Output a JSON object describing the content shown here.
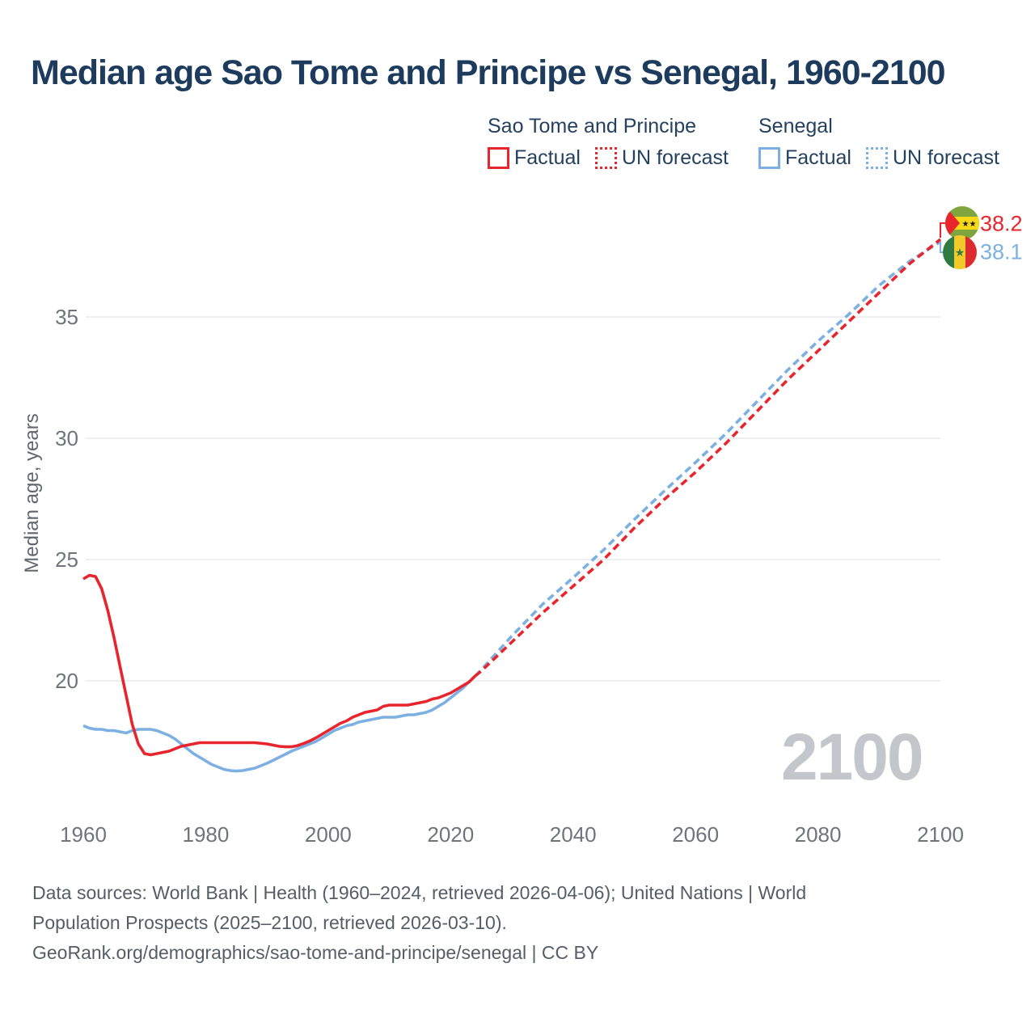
{
  "title": "Median age Sao Tome and Principe vs Senegal, 1960-2100",
  "watermark": "2100",
  "legend": {
    "groups": [
      {
        "name": "Sao Tome and Principe",
        "color": "#e8252c",
        "items": [
          {
            "label": "Factual",
            "style": "solid"
          },
          {
            "label": "UN forecast",
            "style": "dotted"
          }
        ]
      },
      {
        "name": "Senegal",
        "color": "#7cb0e2",
        "items": [
          {
            "label": "Factual",
            "style": "solid"
          },
          {
            "label": "UN forecast",
            "style": "dotted"
          }
        ]
      }
    ]
  },
  "end_labels": [
    {
      "country": "Sao Tome and Principe",
      "value": "38.2",
      "color": "#e8252c",
      "flag": "sao-tome-and-principe-flag"
    },
    {
      "country": "Senegal",
      "value": "38.1",
      "color": "#7cb0e2",
      "flag": "senegal-flag"
    }
  ],
  "sources": {
    "lines": [
      "Data sources: World Bank | Health (1960–2024, retrieved 2026-04-06); United Nations | World",
      "Population Prospects (2025–2100, retrieved 2026-03-10).",
      "GeoRank.org/demographics/sao-tome-and-principe/senegal | CC BY"
    ]
  },
  "chart_data": {
    "type": "line",
    "title": "Median age Sao Tome and Principe vs Senegal, 1960-2100",
    "x_axis": {
      "range": [
        1960,
        2100
      ],
      "ticks": [
        1960,
        1980,
        2000,
        2020,
        2040,
        2060,
        2080,
        2100
      ]
    },
    "y_axis": {
      "title": "Median age, years",
      "ticks": [
        20,
        25,
        30,
        35
      ],
      "ylim": [
        15.5,
        39
      ]
    },
    "grid": "horizontal-only",
    "legend_position": "top-right",
    "series": [
      {
        "id": "senegal_factual",
        "name": "Senegal — Factual",
        "color": "#7cb0e2",
        "dash": false,
        "points": [
          [
            1960,
            18.15
          ],
          [
            1961,
            18.05
          ],
          [
            1962,
            18.0
          ],
          [
            1963,
            18.0
          ],
          [
            1964,
            17.95
          ],
          [
            1965,
            17.95
          ],
          [
            1966,
            17.9
          ],
          [
            1967,
            17.85
          ],
          [
            1968,
            17.95
          ],
          [
            1969,
            18.0
          ],
          [
            1970,
            18.0
          ],
          [
            1971,
            18.0
          ],
          [
            1972,
            17.95
          ],
          [
            1973,
            17.85
          ],
          [
            1974,
            17.75
          ],
          [
            1975,
            17.6
          ],
          [
            1976,
            17.4
          ],
          [
            1977,
            17.2
          ],
          [
            1978,
            17.0
          ],
          [
            1979,
            16.85
          ],
          [
            1980,
            16.7
          ],
          [
            1981,
            16.55
          ],
          [
            1982,
            16.45
          ],
          [
            1983,
            16.35
          ],
          [
            1984,
            16.3
          ],
          [
            1985,
            16.28
          ],
          [
            1986,
            16.3
          ],
          [
            1987,
            16.35
          ],
          [
            1988,
            16.4
          ],
          [
            1989,
            16.5
          ],
          [
            1990,
            16.6
          ],
          [
            1991,
            16.72
          ],
          [
            1992,
            16.85
          ],
          [
            1993,
            16.97
          ],
          [
            1994,
            17.1
          ],
          [
            1995,
            17.2
          ],
          [
            1996,
            17.3
          ],
          [
            1997,
            17.4
          ],
          [
            1998,
            17.5
          ],
          [
            1999,
            17.65
          ],
          [
            2000,
            17.8
          ],
          [
            2001,
            17.95
          ],
          [
            2002,
            18.05
          ],
          [
            2003,
            18.15
          ],
          [
            2004,
            18.2
          ],
          [
            2005,
            18.3
          ],
          [
            2006,
            18.35
          ],
          [
            2007,
            18.4
          ],
          [
            2008,
            18.45
          ],
          [
            2009,
            18.5
          ],
          [
            2010,
            18.5
          ],
          [
            2011,
            18.5
          ],
          [
            2012,
            18.55
          ],
          [
            2013,
            18.6
          ],
          [
            2014,
            18.6
          ],
          [
            2015,
            18.65
          ],
          [
            2016,
            18.7
          ],
          [
            2017,
            18.8
          ],
          [
            2018,
            18.95
          ],
          [
            2019,
            19.1
          ],
          [
            2020,
            19.3
          ],
          [
            2021,
            19.5
          ],
          [
            2022,
            19.7
          ],
          [
            2023,
            19.95
          ],
          [
            2024,
            20.2
          ]
        ]
      },
      {
        "id": "senegal_forecast",
        "name": "Senegal — UN forecast",
        "color": "#7cb0e2",
        "dash": true,
        "points": [
          [
            2024,
            20.2
          ],
          [
            2025,
            20.45
          ],
          [
            2030,
            21.85
          ],
          [
            2035,
            23.15
          ],
          [
            2040,
            24.25
          ],
          [
            2045,
            25.4
          ],
          [
            2050,
            26.65
          ],
          [
            2055,
            27.85
          ],
          [
            2060,
            29.0
          ],
          [
            2065,
            30.2
          ],
          [
            2070,
            31.5
          ],
          [
            2075,
            32.8
          ],
          [
            2080,
            34.0
          ],
          [
            2085,
            35.1
          ],
          [
            2090,
            36.3
          ],
          [
            2095,
            37.3
          ],
          [
            2100,
            38.1
          ]
        ]
      },
      {
        "id": "stp_factual",
        "name": "Sao Tome and Principe — Factual",
        "color": "#e8252c",
        "dash": false,
        "points": [
          [
            1960,
            24.2
          ],
          [
            1961,
            24.35
          ],
          [
            1962,
            24.3
          ],
          [
            1963,
            23.8
          ],
          [
            1964,
            22.9
          ],
          [
            1965,
            21.8
          ],
          [
            1966,
            20.6
          ],
          [
            1967,
            19.4
          ],
          [
            1968,
            18.2
          ],
          [
            1969,
            17.4
          ],
          [
            1970,
            17.0
          ],
          [
            1971,
            16.95
          ],
          [
            1972,
            17.0
          ],
          [
            1973,
            17.05
          ],
          [
            1974,
            17.1
          ],
          [
            1975,
            17.2
          ],
          [
            1976,
            17.3
          ],
          [
            1977,
            17.35
          ],
          [
            1978,
            17.4
          ],
          [
            1979,
            17.45
          ],
          [
            1980,
            17.45
          ],
          [
            1982,
            17.45
          ],
          [
            1984,
            17.45
          ],
          [
            1986,
            17.45
          ],
          [
            1988,
            17.45
          ],
          [
            1990,
            17.4
          ],
          [
            1991,
            17.35
          ],
          [
            1992,
            17.3
          ],
          [
            1993,
            17.28
          ],
          [
            1994,
            17.28
          ],
          [
            1995,
            17.33
          ],
          [
            1996,
            17.42
          ],
          [
            1997,
            17.52
          ],
          [
            1998,
            17.65
          ],
          [
            1999,
            17.8
          ],
          [
            2000,
            17.95
          ],
          [
            2001,
            18.1
          ],
          [
            2002,
            18.25
          ],
          [
            2003,
            18.35
          ],
          [
            2004,
            18.5
          ],
          [
            2005,
            18.6
          ],
          [
            2006,
            18.7
          ],
          [
            2007,
            18.75
          ],
          [
            2008,
            18.8
          ],
          [
            2009,
            18.95
          ],
          [
            2010,
            19.0
          ],
          [
            2011,
            19.0
          ],
          [
            2012,
            19.0
          ],
          [
            2013,
            19.0
          ],
          [
            2014,
            19.05
          ],
          [
            2015,
            19.1
          ],
          [
            2016,
            19.15
          ],
          [
            2017,
            19.25
          ],
          [
            2018,
            19.3
          ],
          [
            2019,
            19.4
          ],
          [
            2020,
            19.5
          ],
          [
            2021,
            19.65
          ],
          [
            2022,
            19.8
          ],
          [
            2023,
            19.95
          ],
          [
            2024,
            20.2
          ]
        ]
      },
      {
        "id": "stp_forecast",
        "name": "Sao Tome and Principe — UN forecast",
        "color": "#e8252c",
        "dash": true,
        "points": [
          [
            2024,
            20.2
          ],
          [
            2025,
            20.4
          ],
          [
            2030,
            21.6
          ],
          [
            2035,
            22.8
          ],
          [
            2040,
            23.9
          ],
          [
            2045,
            25.0
          ],
          [
            2050,
            26.3
          ],
          [
            2055,
            27.5
          ],
          [
            2060,
            28.6
          ],
          [
            2065,
            29.8
          ],
          [
            2070,
            31.1
          ],
          [
            2075,
            32.4
          ],
          [
            2080,
            33.6
          ],
          [
            2085,
            34.8
          ],
          [
            2090,
            36.0
          ],
          [
            2095,
            37.2
          ],
          [
            2100,
            38.2
          ]
        ]
      }
    ],
    "end_values": {
      "sao_tome_and_principe_2100": 38.2,
      "senegal_2100": 38.1
    }
  }
}
